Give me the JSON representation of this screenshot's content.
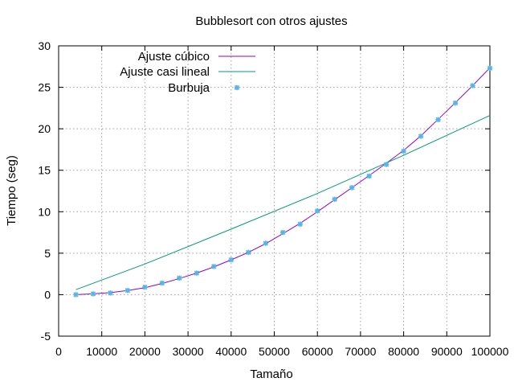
{
  "chart_data": {
    "type": "line",
    "title": "Bubblesort con otros ajustes",
    "xlabel": "Tamaño",
    "ylabel": "Tiempo (seg)",
    "xlim": [
      0,
      100000
    ],
    "ylim": [
      -5,
      30
    ],
    "x_ticks": [
      0,
      10000,
      20000,
      30000,
      40000,
      50000,
      60000,
      70000,
      80000,
      90000,
      100000
    ],
    "y_ticks": [
      -5,
      0,
      5,
      10,
      15,
      20,
      25,
      30
    ],
    "grid": true,
    "legend_position": "top-left",
    "series": [
      {
        "name": "Ajuste cúbico",
        "kind": "line",
        "color": "#9400d3",
        "x": [
          4000,
          8000,
          12000,
          16000,
          20000,
          24000,
          28000,
          32000,
          36000,
          40000,
          44000,
          48000,
          52000,
          56000,
          60000,
          64000,
          68000,
          72000,
          76000,
          80000,
          84000,
          88000,
          92000,
          96000,
          100000
        ],
        "y": [
          0.0,
          0.1,
          0.25,
          0.5,
          0.85,
          1.35,
          1.95,
          2.6,
          3.35,
          4.2,
          5.1,
          6.15,
          7.35,
          8.6,
          10.0,
          11.45,
          12.9,
          14.35,
          15.85,
          17.4,
          19.15,
          21.15,
          23.15,
          25.2,
          27.35
        ]
      },
      {
        "name": "Ajuste casi lineal",
        "kind": "line",
        "color": "#009e73",
        "x": [
          4000,
          20000,
          40000,
          60000,
          80000,
          100000
        ],
        "y": [
          0.6,
          3.7,
          7.9,
          12.2,
          16.8,
          21.6
        ]
      },
      {
        "name": "Burbuja",
        "kind": "scatter",
        "color": "#56b4e9",
        "x": [
          4000,
          8000,
          12000,
          16000,
          20000,
          24000,
          28000,
          32000,
          36000,
          40000,
          44000,
          48000,
          52000,
          56000,
          60000,
          64000,
          68000,
          72000,
          76000,
          80000,
          84000,
          88000,
          92000,
          96000,
          100000
        ],
        "y": [
          0.0,
          0.1,
          0.2,
          0.5,
          0.9,
          1.4,
          2.0,
          2.6,
          3.4,
          4.2,
          5.1,
          6.2,
          7.5,
          8.5,
          10.1,
          11.5,
          12.9,
          14.3,
          15.7,
          17.3,
          19.1,
          21.1,
          23.1,
          25.2,
          27.3
        ]
      }
    ]
  }
}
